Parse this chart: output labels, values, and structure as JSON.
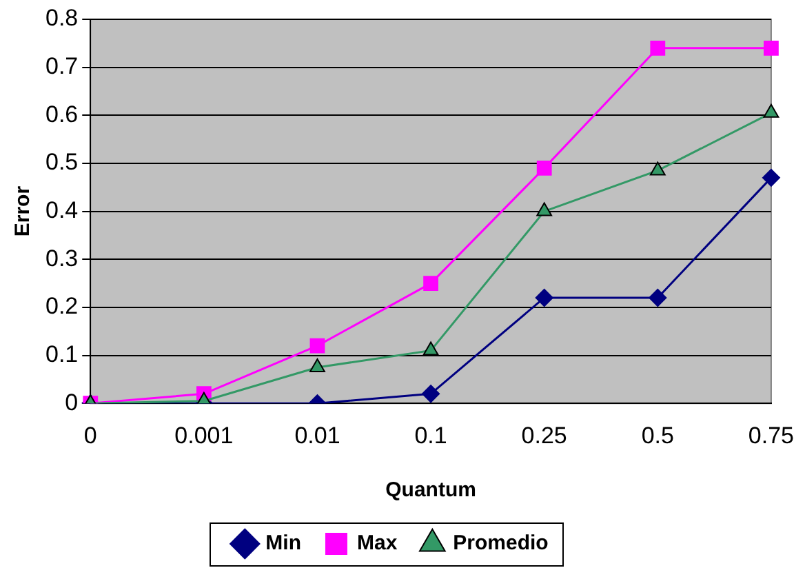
{
  "chart_data": {
    "type": "line",
    "xlabel": "Quantum",
    "ylabel": "Error",
    "categories": [
      "0",
      "0.001",
      "0.01",
      "0.1",
      "0.25",
      "0.5",
      "0.75"
    ],
    "series": [
      {
        "name": "Min",
        "color": "#000080",
        "marker": "diamond",
        "values": [
          0,
          0,
          0,
          0.02,
          0.22,
          0.22,
          0.47
        ]
      },
      {
        "name": "Max",
        "color": "#ff00ff",
        "marker": "square",
        "values": [
          0,
          0.02,
          0.12,
          0.25,
          0.49,
          0.74,
          0.74
        ]
      },
      {
        "name": "Promedio",
        "color": "#339966",
        "marker": "triangle",
        "values": [
          0,
          0.005,
          0.075,
          0.11,
          0.4,
          0.485,
          0.605
        ]
      }
    ],
    "ylim": [
      0,
      0.8
    ],
    "yticks": [
      0,
      0.1,
      0.2,
      0.3,
      0.4,
      0.5,
      0.6,
      0.7,
      0.8
    ],
    "grid": "y",
    "legend": "bottom"
  }
}
